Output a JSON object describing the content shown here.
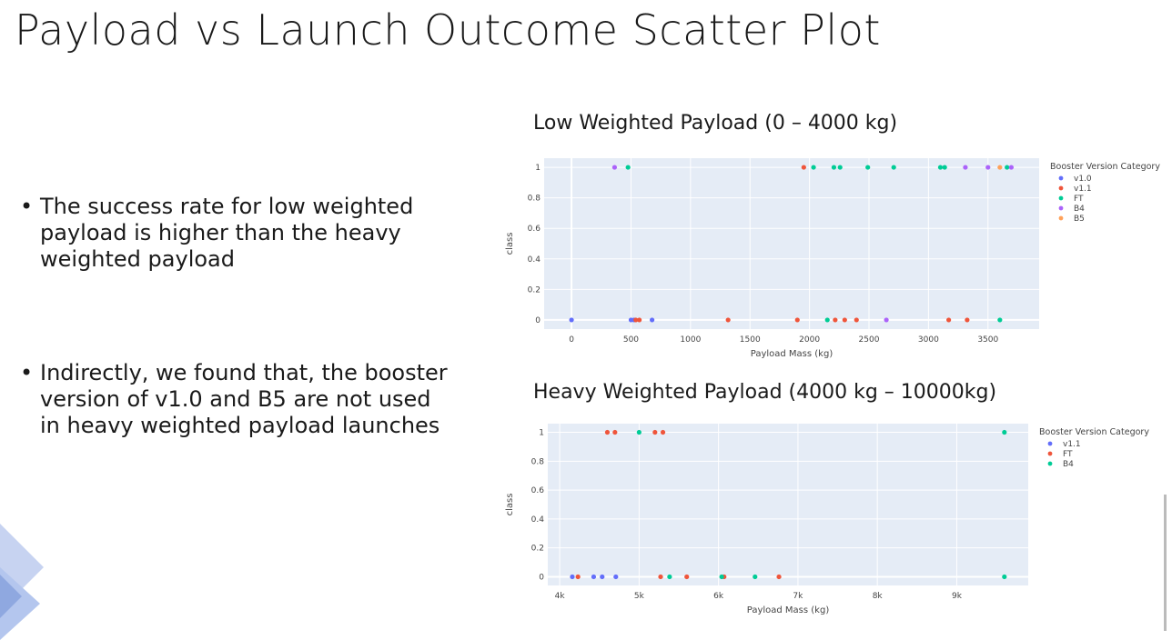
{
  "title": "Payload vs Launch Outcome Scatter Plot",
  "bullets": [
    "The success rate for low weighted payload is higher than the heavy weighted payload",
    "Indirectly, we found that, the booster version of v1.0 and B5 are not used in heavy weighted payload launches"
  ],
  "colors": {
    "plot_bg": "#e5ecf6",
    "grid": "#ffffff",
    "decoration": "#8fa8e0"
  },
  "chart_data": [
    {
      "type": "scatter",
      "title": "Low Weighted Payload (0 – 4000 kg)",
      "xlabel": "Payload Mass (kg)",
      "ylabel": "class",
      "xlim": [
        -230,
        3930
      ],
      "ylim": [
        -0.06,
        1.06
      ],
      "x_ticks": [
        0,
        500,
        1000,
        1500,
        2000,
        2500,
        3000,
        3500
      ],
      "x_tick_labels": [
        "0",
        "500",
        "1000",
        "1500",
        "2000",
        "2500",
        "3000",
        "3500"
      ],
      "y_ticks": [
        0,
        0.2,
        0.4,
        0.6,
        0.8,
        1
      ],
      "y_tick_labels": [
        "0",
        "0.2",
        "0.4",
        "0.6",
        "0.8",
        "1"
      ],
      "grid": true,
      "legend": {
        "title": "Booster Version Category",
        "placement": "right"
      },
      "series": [
        {
          "name": "v1.0",
          "color": "#636efa",
          "points": [
            [
              0,
              0
            ],
            [
              500,
              0
            ],
            [
              525,
              0
            ],
            [
              677,
              0
            ]
          ]
        },
        {
          "name": "v1.1",
          "color": "#ef553b",
          "points": [
            [
              1316,
              0
            ],
            [
              1898,
              0
            ],
            [
              2216,
              0
            ],
            [
              2296,
              0
            ],
            [
              2395,
              0
            ],
            [
              3170,
              0
            ],
            [
              3325,
              0
            ],
            [
              1952,
              1
            ],
            [
              540,
              0
            ],
            [
              570,
              0
            ]
          ]
        },
        {
          "name": "FT",
          "color": "#00cc96",
          "points": [
            [
              475,
              1
            ],
            [
              2034,
              1
            ],
            [
              2205,
              1
            ],
            [
              2257,
              1
            ],
            [
              2490,
              1
            ],
            [
              2708,
              1
            ],
            [
              3100,
              1
            ],
            [
              3136,
              1
            ],
            [
              2150,
              0
            ],
            [
              3600,
              0
            ],
            [
              3660,
              1
            ]
          ]
        },
        {
          "name": "B4",
          "color": "#ab63fa",
          "points": [
            [
              362,
              1
            ],
            [
              2646,
              0
            ],
            [
              3310,
              1
            ],
            [
              3500,
              1
            ],
            [
              3696,
              1
            ]
          ]
        },
        {
          "name": "B5",
          "color": "#ffa15a",
          "points": [
            [
              3600,
              1
            ]
          ]
        }
      ]
    },
    {
      "type": "scatter",
      "title": "Heavy Weighted Payload (4000 kg – 10000kg)",
      "xlabel": "Payload Mass (kg)",
      "ylabel": "class",
      "xlim": [
        3850,
        9900
      ],
      "ylim": [
        -0.06,
        1.06
      ],
      "x_ticks": [
        4000,
        5000,
        6000,
        7000,
        8000,
        9000
      ],
      "x_tick_labels": [
        "4k",
        "5k",
        "6k",
        "7k",
        "8k",
        "9k"
      ],
      "y_ticks": [
        0,
        0.2,
        0.4,
        0.6,
        0.8,
        1
      ],
      "y_tick_labels": [
        "0",
        "0.2",
        "0.4",
        "0.6",
        "0.8",
        "1"
      ],
      "grid": true,
      "legend": {
        "title": "Booster Version Category",
        "placement": "right"
      },
      "series": [
        {
          "name": "v1.1",
          "color": "#636efa",
          "points": [
            [
              4159,
              0
            ],
            [
              4428,
              0
            ],
            [
              4535,
              0
            ],
            [
              4707,
              0
            ]
          ]
        },
        {
          "name": "FT",
          "color": "#ef553b",
          "points": [
            [
              4230,
              0
            ],
            [
              4600,
              1
            ],
            [
              4696,
              1
            ],
            [
              5200,
              1
            ],
            [
              5300,
              1
            ],
            [
              5271,
              0
            ],
            [
              5600,
              0
            ],
            [
              6070,
              0
            ],
            [
              6761,
              0
            ]
          ]
        },
        {
          "name": "B4",
          "color": "#00cc96",
          "points": [
            [
              5000,
              1
            ],
            [
              5384,
              0
            ],
            [
              6040,
              0
            ],
            [
              6460,
              0
            ],
            [
              9600,
              1
            ],
            [
              9600,
              0
            ]
          ]
        }
      ]
    }
  ]
}
